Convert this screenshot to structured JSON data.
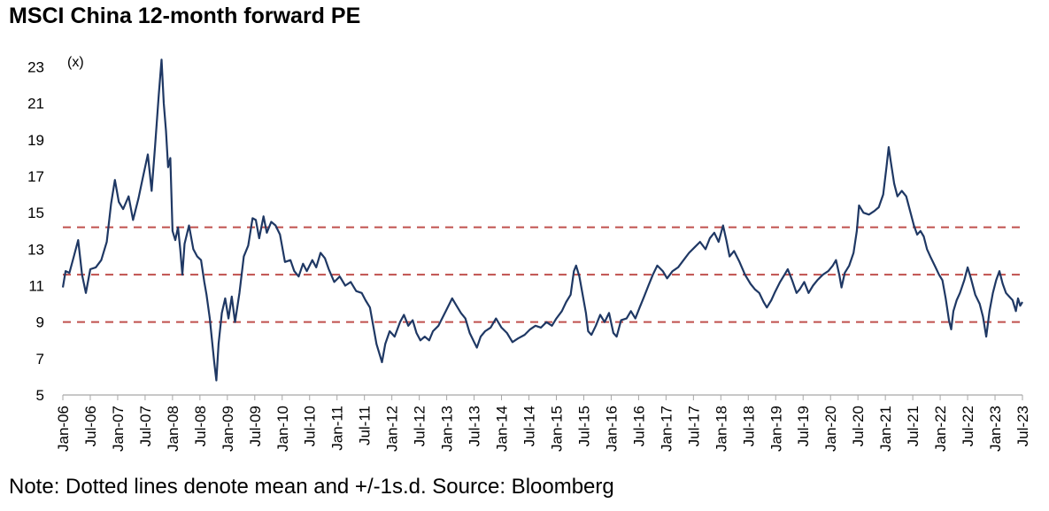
{
  "chart_data": {
    "type": "line",
    "title": "MSCI China 12-month forward PE",
    "ylabel": "(x)",
    "note": "Note: Dotted lines denote mean and +/-1s.d.  Source: Bloomberg",
    "ylim": [
      5,
      24
    ],
    "yticks": [
      "5",
      "7",
      "9",
      "11",
      "13",
      "15",
      "17",
      "19",
      "21",
      "23"
    ],
    "xlim": [
      2006.0,
      2023.5
    ],
    "xticks": [
      "Jan-06",
      "Jul-06",
      "Jan-07",
      "Jul-07",
      "Jan-08",
      "Jul-08",
      "Jan-09",
      "Jul-09",
      "Jan-10",
      "Jul-10",
      "Jan-11",
      "Jul-11",
      "Jan-12",
      "Jul-12",
      "Jan-13",
      "Jul-13",
      "Jan-14",
      "Jul-14",
      "Jan-15",
      "Jul-15",
      "Jan-16",
      "Jul-16",
      "Jan-17",
      "Jul-17",
      "Jan-18",
      "Jul-18",
      "Jan-19",
      "Jul-19",
      "Jan-20",
      "Jul-20",
      "Jan-21",
      "Jul-21",
      "Jan-22",
      "Jul-22",
      "Jan-23",
      "Jul-23"
    ],
    "reference_lines": [
      {
        "name": "mean + 1 s.d.",
        "value": 14.2,
        "style": "dashed",
        "color": "#c0504d"
      },
      {
        "name": "mean",
        "value": 11.6,
        "style": "dashed",
        "color": "#c0504d"
      },
      {
        "name": "mean - 1 s.d.",
        "value": 9.0,
        "style": "dashed",
        "color": "#c0504d"
      }
    ],
    "series": [
      {
        "name": "MSCI China 12-month forward PE",
        "color": "#1f3864",
        "points": [
          [
            2006.0,
            10.9
          ],
          [
            2006.05,
            11.8
          ],
          [
            2006.12,
            11.7
          ],
          [
            2006.2,
            12.6
          ],
          [
            2006.28,
            13.5
          ],
          [
            2006.35,
            11.6
          ],
          [
            2006.42,
            10.6
          ],
          [
            2006.5,
            11.9
          ],
          [
            2006.6,
            12.0
          ],
          [
            2006.7,
            12.4
          ],
          [
            2006.8,
            13.4
          ],
          [
            2006.88,
            15.5
          ],
          [
            2006.95,
            16.8
          ],
          [
            2007.02,
            15.6
          ],
          [
            2007.1,
            15.2
          ],
          [
            2007.2,
            15.9
          ],
          [
            2007.28,
            14.6
          ],
          [
            2007.38,
            15.8
          ],
          [
            2007.45,
            16.8
          ],
          [
            2007.55,
            18.2
          ],
          [
            2007.62,
            16.2
          ],
          [
            2007.68,
            18.6
          ],
          [
            2007.75,
            21.5
          ],
          [
            2007.8,
            23.4
          ],
          [
            2007.84,
            21.0
          ],
          [
            2007.88,
            19.5
          ],
          [
            2007.92,
            17.5
          ],
          [
            2007.96,
            18.0
          ],
          [
            2008.0,
            14.0
          ],
          [
            2008.05,
            13.5
          ],
          [
            2008.1,
            14.2
          ],
          [
            2008.14,
            13.0
          ],
          [
            2008.18,
            11.6
          ],
          [
            2008.22,
            13.3
          ],
          [
            2008.3,
            14.3
          ],
          [
            2008.38,
            13.0
          ],
          [
            2008.45,
            12.6
          ],
          [
            2008.52,
            12.4
          ],
          [
            2008.58,
            11.2
          ],
          [
            2008.62,
            10.5
          ],
          [
            2008.68,
            9.2
          ],
          [
            2008.72,
            8.0
          ],
          [
            2008.76,
            6.8
          ],
          [
            2008.8,
            5.8
          ],
          [
            2008.84,
            7.8
          ],
          [
            2008.9,
            9.5
          ],
          [
            2008.96,
            10.3
          ],
          [
            2009.02,
            9.2
          ],
          [
            2009.08,
            10.4
          ],
          [
            2009.14,
            9.0
          ],
          [
            2009.22,
            10.6
          ],
          [
            2009.3,
            12.6
          ],
          [
            2009.38,
            13.2
          ],
          [
            2009.46,
            14.7
          ],
          [
            2009.52,
            14.6
          ],
          [
            2009.58,
            13.6
          ],
          [
            2009.66,
            14.8
          ],
          [
            2009.72,
            13.9
          ],
          [
            2009.8,
            14.5
          ],
          [
            2009.88,
            14.3
          ],
          [
            2009.96,
            13.8
          ],
          [
            2010.05,
            12.3
          ],
          [
            2010.15,
            12.4
          ],
          [
            2010.22,
            11.8
          ],
          [
            2010.3,
            11.5
          ],
          [
            2010.38,
            12.2
          ],
          [
            2010.45,
            11.8
          ],
          [
            2010.55,
            12.4
          ],
          [
            2010.62,
            12.0
          ],
          [
            2010.7,
            12.8
          ],
          [
            2010.78,
            12.5
          ],
          [
            2010.85,
            11.9
          ],
          [
            2010.95,
            11.2
          ],
          [
            2011.05,
            11.5
          ],
          [
            2011.15,
            11.0
          ],
          [
            2011.25,
            11.2
          ],
          [
            2011.35,
            10.7
          ],
          [
            2011.45,
            10.6
          ],
          [
            2011.52,
            10.2
          ],
          [
            2011.6,
            9.8
          ],
          [
            2011.66,
            8.8
          ],
          [
            2011.72,
            7.8
          ],
          [
            2011.78,
            7.2
          ],
          [
            2011.82,
            6.8
          ],
          [
            2011.88,
            7.8
          ],
          [
            2011.96,
            8.5
          ],
          [
            2012.05,
            8.2
          ],
          [
            2012.15,
            9.0
          ],
          [
            2012.22,
            9.4
          ],
          [
            2012.3,
            8.8
          ],
          [
            2012.38,
            9.1
          ],
          [
            2012.45,
            8.4
          ],
          [
            2012.52,
            8.0
          ],
          [
            2012.6,
            8.2
          ],
          [
            2012.68,
            8.0
          ],
          [
            2012.75,
            8.5
          ],
          [
            2012.85,
            8.8
          ],
          [
            2012.95,
            9.4
          ],
          [
            2013.05,
            10.0
          ],
          [
            2013.1,
            10.3
          ],
          [
            2013.18,
            9.9
          ],
          [
            2013.26,
            9.5
          ],
          [
            2013.34,
            9.2
          ],
          [
            2013.42,
            8.4
          ],
          [
            2013.5,
            7.9
          ],
          [
            2013.55,
            7.6
          ],
          [
            2013.62,
            8.2
          ],
          [
            2013.7,
            8.5
          ],
          [
            2013.8,
            8.7
          ],
          [
            2013.9,
            9.2
          ],
          [
            2014.0,
            8.7
          ],
          [
            2014.1,
            8.4
          ],
          [
            2014.2,
            7.9
          ],
          [
            2014.3,
            8.1
          ],
          [
            2014.42,
            8.3
          ],
          [
            2014.52,
            8.6
          ],
          [
            2014.62,
            8.8
          ],
          [
            2014.72,
            8.7
          ],
          [
            2014.82,
            9.0
          ],
          [
            2014.92,
            8.8
          ],
          [
            2015.0,
            9.2
          ],
          [
            2015.1,
            9.6
          ],
          [
            2015.18,
            10.1
          ],
          [
            2015.26,
            10.5
          ],
          [
            2015.32,
            11.8
          ],
          [
            2015.36,
            12.1
          ],
          [
            2015.42,
            11.5
          ],
          [
            2015.48,
            10.5
          ],
          [
            2015.54,
            9.5
          ],
          [
            2015.58,
            8.5
          ],
          [
            2015.64,
            8.3
          ],
          [
            2015.72,
            8.8
          ],
          [
            2015.8,
            9.4
          ],
          [
            2015.88,
            9.0
          ],
          [
            2015.96,
            9.5
          ],
          [
            2016.04,
            8.4
          ],
          [
            2016.1,
            8.2
          ],
          [
            2016.18,
            9.1
          ],
          [
            2016.28,
            9.2
          ],
          [
            2016.36,
            9.6
          ],
          [
            2016.44,
            9.2
          ],
          [
            2016.52,
            9.8
          ],
          [
            2016.6,
            10.4
          ],
          [
            2016.68,
            11.0
          ],
          [
            2016.76,
            11.6
          ],
          [
            2016.84,
            12.1
          ],
          [
            2016.94,
            11.8
          ],
          [
            2017.02,
            11.4
          ],
          [
            2017.12,
            11.8
          ],
          [
            2017.22,
            12.0
          ],
          [
            2017.32,
            12.4
          ],
          [
            2017.42,
            12.8
          ],
          [
            2017.52,
            13.1
          ],
          [
            2017.62,
            13.4
          ],
          [
            2017.72,
            13.0
          ],
          [
            2017.8,
            13.6
          ],
          [
            2017.88,
            13.9
          ],
          [
            2017.96,
            13.4
          ],
          [
            2018.04,
            14.3
          ],
          [
            2018.1,
            13.5
          ],
          [
            2018.16,
            12.6
          ],
          [
            2018.24,
            12.9
          ],
          [
            2018.34,
            12.3
          ],
          [
            2018.44,
            11.6
          ],
          [
            2018.54,
            11.1
          ],
          [
            2018.62,
            10.8
          ],
          [
            2018.7,
            10.6
          ],
          [
            2018.78,
            10.1
          ],
          [
            2018.84,
            9.8
          ],
          [
            2018.92,
            10.2
          ],
          [
            2018.98,
            10.6
          ],
          [
            2019.08,
            11.2
          ],
          [
            2019.16,
            11.6
          ],
          [
            2019.22,
            11.9
          ],
          [
            2019.3,
            11.3
          ],
          [
            2019.38,
            10.6
          ],
          [
            2019.44,
            10.8
          ],
          [
            2019.52,
            11.2
          ],
          [
            2019.6,
            10.6
          ],
          [
            2019.68,
            11.0
          ],
          [
            2019.76,
            11.3
          ],
          [
            2019.86,
            11.6
          ],
          [
            2019.96,
            11.8
          ],
          [
            2020.04,
            12.1
          ],
          [
            2020.1,
            12.4
          ],
          [
            2020.16,
            11.6
          ],
          [
            2020.2,
            10.9
          ],
          [
            2020.26,
            11.7
          ],
          [
            2020.34,
            12.1
          ],
          [
            2020.42,
            12.8
          ],
          [
            2020.48,
            14.0
          ],
          [
            2020.52,
            15.4
          ],
          [
            2020.6,
            15.0
          ],
          [
            2020.7,
            14.9
          ],
          [
            2020.8,
            15.1
          ],
          [
            2020.88,
            15.3
          ],
          [
            2020.96,
            16.0
          ],
          [
            2021.02,
            17.5
          ],
          [
            2021.06,
            18.6
          ],
          [
            2021.1,
            17.8
          ],
          [
            2021.16,
            16.6
          ],
          [
            2021.22,
            15.9
          ],
          [
            2021.3,
            16.2
          ],
          [
            2021.38,
            15.9
          ],
          [
            2021.46,
            15.0
          ],
          [
            2021.52,
            14.3
          ],
          [
            2021.58,
            13.8
          ],
          [
            2021.64,
            14.0
          ],
          [
            2021.7,
            13.7
          ],
          [
            2021.76,
            13.0
          ],
          [
            2021.82,
            12.6
          ],
          [
            2021.9,
            12.1
          ],
          [
            2021.98,
            11.6
          ],
          [
            2022.04,
            11.3
          ],
          [
            2022.1,
            10.3
          ],
          [
            2022.16,
            9.1
          ],
          [
            2022.2,
            8.6
          ],
          [
            2022.24,
            9.6
          ],
          [
            2022.3,
            10.2
          ],
          [
            2022.36,
            10.6
          ],
          [
            2022.44,
            11.3
          ],
          [
            2022.5,
            12.0
          ],
          [
            2022.56,
            11.4
          ],
          [
            2022.64,
            10.5
          ],
          [
            2022.72,
            10.0
          ],
          [
            2022.78,
            9.3
          ],
          [
            2022.84,
            8.2
          ],
          [
            2022.9,
            9.6
          ],
          [
            2022.96,
            10.6
          ],
          [
            2023.02,
            11.3
          ],
          [
            2023.08,
            11.8
          ],
          [
            2023.14,
            11.1
          ],
          [
            2023.2,
            10.6
          ],
          [
            2023.26,
            10.4
          ],
          [
            2023.32,
            10.2
          ],
          [
            2023.38,
            9.6
          ],
          [
            2023.42,
            10.3
          ],
          [
            2023.46,
            9.9
          ],
          [
            2023.5,
            10.1
          ]
        ]
      }
    ]
  }
}
